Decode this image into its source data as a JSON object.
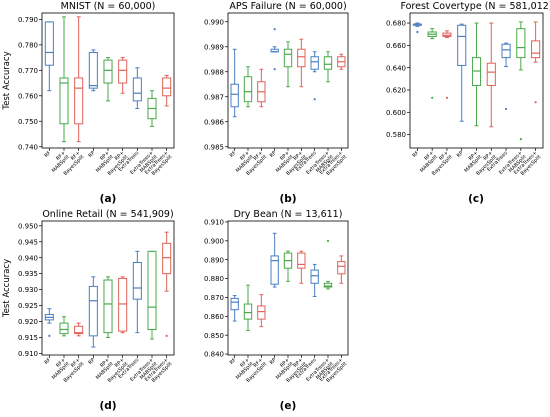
{
  "figure": {
    "y_axis_label": "Test Accuracy",
    "colors": {
      "blue": "#4a7fc1",
      "green": "#4aa84a",
      "red": "#e0625a",
      "outlier_red": "#d63a3a"
    }
  },
  "chart_data": [
    {
      "panel": "(a)",
      "type": "box",
      "title": "MNIST (N = 60,000)",
      "ylabel": "Test Accuracy",
      "ylim": [
        0.7395,
        0.7925
      ],
      "yticks": [
        0.74,
        0.75,
        0.76,
        0.77,
        0.78,
        0.79
      ],
      "ytick_labels": [
        "0.740",
        "0.750",
        "0.760",
        "0.770",
        "0.780",
        "0.790"
      ],
      "categories": [
        "RF",
        "RF+ MABSplit",
        "RF+ BayesSplit",
        "RP",
        "RP+ MABSplit",
        "RP+ BayesSplit",
        "ExtraTrees",
        "ExtraTrees+ MABSplit",
        "ExtraTrees+ BayesSplit"
      ],
      "boxes": [
        {
          "color": "blue",
          "whislo": 0.762,
          "q1": 0.772,
          "med": 0.777,
          "q3": 0.789,
          "whishi": 0.789,
          "fliers": []
        },
        {
          "color": "green",
          "whislo": 0.742,
          "q1": 0.749,
          "med": 0.765,
          "q3": 0.767,
          "whishi": 0.791,
          "fliers": []
        },
        {
          "color": "red",
          "whislo": 0.742,
          "q1": 0.749,
          "med": 0.763,
          "q3": 0.767,
          "whishi": 0.791,
          "fliers": []
        },
        {
          "color": "blue",
          "whislo": 0.762,
          "q1": 0.763,
          "med": 0.764,
          "q3": 0.777,
          "whishi": 0.778,
          "fliers": []
        },
        {
          "color": "green",
          "whislo": 0.758,
          "q1": 0.765,
          "med": 0.77,
          "q3": 0.774,
          "whishi": 0.775,
          "fliers": []
        },
        {
          "color": "red",
          "whislo": 0.761,
          "q1": 0.765,
          "med": 0.77,
          "q3": 0.774,
          "whishi": 0.775,
          "fliers": []
        },
        {
          "color": "blue",
          "whislo": 0.755,
          "q1": 0.758,
          "med": 0.761,
          "q3": 0.767,
          "whishi": 0.771,
          "fliers": []
        },
        {
          "color": "green",
          "whislo": 0.748,
          "q1": 0.751,
          "med": 0.755,
          "q3": 0.759,
          "whishi": 0.762,
          "fliers": []
        },
        {
          "color": "red",
          "whislo": 0.756,
          "q1": 0.76,
          "med": 0.763,
          "q3": 0.767,
          "whishi": 0.768,
          "fliers": []
        }
      ]
    },
    {
      "panel": "(b)",
      "type": "box",
      "title": "APS Failure (N = 60,000)",
      "ylabel": "",
      "ylim": [
        0.98495,
        0.99035
      ],
      "yticks": [
        0.985,
        0.986,
        0.987,
        0.988,
        0.989,
        0.99
      ],
      "ytick_labels": [
        "0.985",
        "0.986",
        "0.987",
        "0.988",
        "0.989",
        "0.990"
      ],
      "categories": [
        "RF",
        "RF+ MABSplit",
        "RF+ BayesSplit",
        "RP",
        "RP+ MABSplit",
        "RP+ BayesSplit",
        "ExtraTrees",
        "ExtraTrees+ MABSplit",
        "ExtraTrees+ BayesSplit"
      ],
      "boxes": [
        {
          "color": "blue",
          "whislo": 0.9862,
          "q1": 0.9866,
          "med": 0.9871,
          "q3": 0.9875,
          "whishi": 0.9889,
          "fliers": []
        },
        {
          "color": "green",
          "whislo": 0.9866,
          "q1": 0.9868,
          "med": 0.9872,
          "q3": 0.9878,
          "whishi": 0.9882,
          "fliers": []
        },
        {
          "color": "red",
          "whislo": 0.9866,
          "q1": 0.9868,
          "med": 0.9872,
          "q3": 0.9876,
          "whishi": 0.9881,
          "fliers": []
        },
        {
          "color": "blue",
          "whislo": 0.9888,
          "q1": 0.9888,
          "med": 0.9888,
          "q3": 0.9889,
          "whishi": 0.989,
          "fliers": [
            0.9897,
            0.9881
          ]
        },
        {
          "color": "green",
          "whislo": 0.9874,
          "q1": 0.9882,
          "med": 0.9887,
          "q3": 0.9889,
          "whishi": 0.9892,
          "fliers": []
        },
        {
          "color": "red",
          "whislo": 0.9874,
          "q1": 0.9882,
          "med": 0.9886,
          "q3": 0.9889,
          "whishi": 0.9893,
          "fliers": []
        },
        {
          "color": "blue",
          "whislo": 0.988,
          "q1": 0.9881,
          "med": 0.9884,
          "q3": 0.9886,
          "whishi": 0.9888,
          "fliers": [
            0.9869
          ]
        },
        {
          "color": "green",
          "whislo": 0.9876,
          "q1": 0.9881,
          "med": 0.9883,
          "q3": 0.9886,
          "whishi": 0.9888,
          "fliers": []
        },
        {
          "color": "red",
          "whislo": 0.9881,
          "q1": 0.9882,
          "med": 0.9884,
          "q3": 0.9886,
          "whishi": 0.9887,
          "fliers": []
        }
      ]
    },
    {
      "panel": "(c)",
      "type": "box",
      "title": "Forest Covertype (N = 581,012)",
      "ylabel": "",
      "ylim": [
        0.568,
        0.689
      ],
      "yticks": [
        0.58,
        0.6,
        0.62,
        0.64,
        0.66,
        0.68
      ],
      "ytick_labels": [
        "0.580",
        "0.600",
        "0.620",
        "0.640",
        "0.660",
        "0.680"
      ],
      "categories": [
        "RF",
        "RF+ MABSplit",
        "RF+ BayesSplit",
        "RP",
        "RP+ MABSplit",
        "RP+ BayesSplit",
        "ExtraTrees",
        "ExtraTrees+ MABSplit",
        "ExtraTrees+ BayesSplit"
      ],
      "boxes": [
        {
          "color": "blue",
          "whislo": 0.677,
          "q1": 0.678,
          "med": 0.679,
          "q3": 0.679,
          "whishi": 0.68,
          "fliers": [
            0.672
          ]
        },
        {
          "color": "green",
          "whislo": 0.666,
          "q1": 0.668,
          "med": 0.67,
          "q3": 0.672,
          "whishi": 0.675,
          "fliers": [
            0.613
          ]
        },
        {
          "color": "red",
          "whislo": 0.667,
          "q1": 0.668,
          "med": 0.669,
          "q3": 0.671,
          "whishi": 0.673,
          "fliers": [
            0.613
          ]
        },
        {
          "color": "blue",
          "whislo": 0.592,
          "q1": 0.642,
          "med": 0.668,
          "q3": 0.678,
          "whishi": 0.679,
          "fliers": []
        },
        {
          "color": "green",
          "whislo": 0.588,
          "q1": 0.624,
          "med": 0.637,
          "q3": 0.649,
          "whishi": 0.68,
          "fliers": []
        },
        {
          "color": "red",
          "whislo": 0.587,
          "q1": 0.624,
          "med": 0.636,
          "q3": 0.644,
          "whishi": 0.68,
          "fliers": []
        },
        {
          "color": "blue",
          "whislo": 0.641,
          "q1": 0.649,
          "med": 0.656,
          "q3": 0.661,
          "whishi": 0.662,
          "fliers": [
            0.603
          ]
        },
        {
          "color": "green",
          "whislo": 0.638,
          "q1": 0.649,
          "med": 0.658,
          "q3": 0.675,
          "whishi": 0.681,
          "fliers": [
            0.576
          ]
        },
        {
          "color": "red",
          "whislo": 0.645,
          "q1": 0.649,
          "med": 0.653,
          "q3": 0.664,
          "whishi": 0.681,
          "fliers": [
            0.609
          ]
        }
      ]
    },
    {
      "panel": "(d)",
      "type": "box",
      "title": "Online Retail (N = 541,909)",
      "ylabel": "Test Accuracy",
      "ylim": [
        0.9095,
        0.9515
      ],
      "yticks": [
        0.91,
        0.915,
        0.92,
        0.925,
        0.93,
        0.935,
        0.94,
        0.945,
        0.95
      ],
      "ytick_labels": [
        "0.910",
        "0.915",
        "0.920",
        "0.925",
        "0.930",
        "0.935",
        "0.940",
        "0.945",
        "0.950"
      ],
      "categories": [
        "RF",
        "RF+ MABSplit",
        "RF+ BayesSplit",
        "RP",
        "RP+ MABSplit",
        "RP+ BayesSplit",
        "ExtraTrees",
        "ExtraTrees+ MABSplit",
        "ExtraTrees+ BayesSplit"
      ],
      "boxes": [
        {
          "color": "blue",
          "whislo": 0.9195,
          "q1": 0.9205,
          "med": 0.9213,
          "q3": 0.9222,
          "whishi": 0.924,
          "fliers": [
            0.9155
          ]
        },
        {
          "color": "green",
          "whislo": 0.9155,
          "q1": 0.9162,
          "med": 0.9175,
          "q3": 0.9195,
          "whishi": 0.9215,
          "fliers": []
        },
        {
          "color": "red",
          "whislo": 0.9155,
          "q1": 0.9162,
          "med": 0.9165,
          "q3": 0.9185,
          "whishi": 0.9195,
          "fliers": []
        },
        {
          "color": "blue",
          "whislo": 0.912,
          "q1": 0.9155,
          "med": 0.9265,
          "q3": 0.931,
          "whishi": 0.934,
          "fliers": []
        },
        {
          "color": "green",
          "whislo": 0.915,
          "q1": 0.9165,
          "med": 0.9255,
          "q3": 0.933,
          "whishi": 0.934,
          "fliers": []
        },
        {
          "color": "red",
          "whislo": 0.9165,
          "q1": 0.917,
          "med": 0.9255,
          "q3": 0.9335,
          "whishi": 0.934,
          "fliers": []
        },
        {
          "color": "blue",
          "whislo": 0.9165,
          "q1": 0.927,
          "med": 0.9305,
          "q3": 0.9385,
          "whishi": 0.942,
          "fliers": []
        },
        {
          "color": "green",
          "whislo": 0.9145,
          "q1": 0.9175,
          "med": 0.9245,
          "q3": 0.942,
          "whishi": 0.942,
          "fliers": []
        },
        {
          "color": "red",
          "whislo": 0.9295,
          "q1": 0.935,
          "med": 0.94,
          "q3": 0.9445,
          "whishi": 0.948,
          "fliers": [
            0.9155
          ]
        }
      ]
    },
    {
      "panel": "(e)",
      "type": "box",
      "title": "Dry Bean (N = 13,611)",
      "ylabel": "",
      "ylim": [
        0.8395,
        0.9105
      ],
      "yticks": [
        0.84,
        0.85,
        0.86,
        0.87,
        0.88,
        0.89,
        0.9,
        0.91
      ],
      "ytick_labels": [
        "0.840",
        "0.850",
        "0.860",
        "0.870",
        "0.880",
        "0.890",
        "0.900",
        "0.910"
      ],
      "categories": [
        "RF",
        "RF+ MABSplit",
        "RF+ BayesSplit",
        "RP",
        "RP+ MABSplit",
        "RP+ BayesSplit",
        "ExtraTrees",
        "ExtraTrees+ MABSplit",
        "ExtraTrees+ BayesSplit"
      ],
      "boxes": [
        {
          "color": "blue",
          "whislo": 0.8575,
          "q1": 0.8635,
          "med": 0.8675,
          "q3": 0.8695,
          "whishi": 0.871,
          "fliers": []
        },
        {
          "color": "green",
          "whislo": 0.8525,
          "q1": 0.8585,
          "med": 0.862,
          "q3": 0.8665,
          "whishi": 0.8765,
          "fliers": []
        },
        {
          "color": "red",
          "whislo": 0.8545,
          "q1": 0.8585,
          "med": 0.8625,
          "q3": 0.8655,
          "whishi": 0.8715,
          "fliers": []
        },
        {
          "color": "blue",
          "whislo": 0.8755,
          "q1": 0.877,
          "med": 0.8895,
          "q3": 0.892,
          "whishi": 0.904,
          "fliers": []
        },
        {
          "color": "green",
          "whislo": 0.8785,
          "q1": 0.8855,
          "med": 0.8895,
          "q3": 0.8935,
          "whishi": 0.8945,
          "fliers": []
        },
        {
          "color": "red",
          "whislo": 0.8775,
          "q1": 0.8855,
          "med": 0.8875,
          "q3": 0.8935,
          "whishi": 0.8945,
          "fliers": []
        },
        {
          "color": "blue",
          "whislo": 0.8705,
          "q1": 0.8775,
          "med": 0.8815,
          "q3": 0.8845,
          "whishi": 0.8875,
          "fliers": []
        },
        {
          "color": "green",
          "whislo": 0.8745,
          "q1": 0.8755,
          "med": 0.876,
          "q3": 0.8775,
          "whishi": 0.8785,
          "fliers": [
            0.9
          ]
        },
        {
          "color": "red",
          "whislo": 0.8775,
          "q1": 0.8825,
          "med": 0.8865,
          "q3": 0.889,
          "whishi": 0.892,
          "fliers": []
        }
      ]
    }
  ]
}
